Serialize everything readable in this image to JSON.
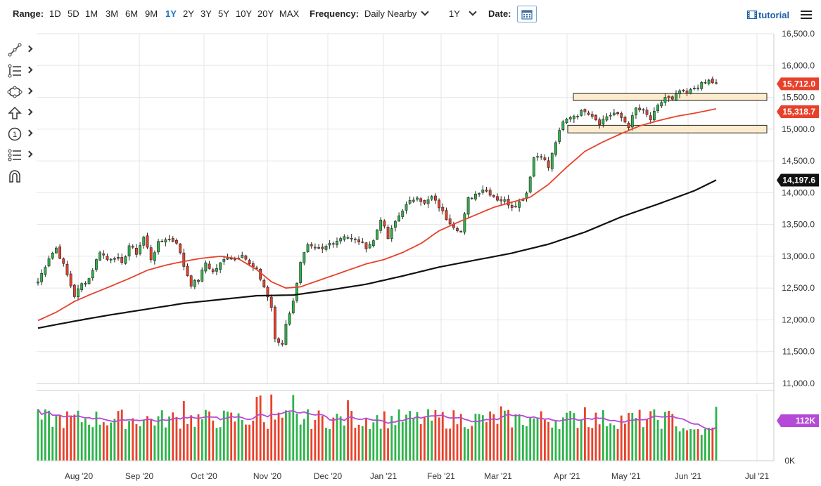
{
  "toolbar": {
    "range_label": "Range:",
    "ranges": [
      "1D",
      "5D",
      "1M",
      "3M",
      "6M",
      "9M",
      "1Y",
      "2Y",
      "3Y",
      "5Y",
      "10Y",
      "20Y",
      "MAX"
    ],
    "active_range": "1Y",
    "frequency_label": "Frequency:",
    "frequency_value": "Daily Nearby",
    "period_value": "1Y",
    "date_label": "Date:",
    "tutorial_label": "tutorial"
  },
  "icons": {
    "tools": [
      "trend-line-icon",
      "fibonacci-icon",
      "shapes-icon",
      "arrow-icon",
      "numbered-marker-icon",
      "measure-icon",
      "magnet-icon"
    ],
    "date": "calendar-icon",
    "tutorial": "film-icon",
    "menu": "hamburger-menu-icon"
  },
  "chart_data": {
    "type": "candlestick",
    "x_labels": [
      "Aug '20",
      "Sep '20",
      "Oct '20",
      "Nov '20",
      "Dec '20",
      "Jan '21",
      "Feb '21",
      "Mar '21",
      "Apr '21",
      "May '21",
      "Jun '21",
      "Jul '21"
    ],
    "y_ticks": [
      "16,500.0",
      "16,000.0",
      "15,500.0",
      "15,000.0",
      "14,500.0",
      "14,000.0",
      "13,500.0",
      "13,000.0",
      "12,500.0",
      "12,000.0",
      "11,500.0",
      "11,000.0"
    ],
    "ylim": [
      11000,
      16500
    ],
    "volume_ticks": [
      "0K"
    ],
    "grid": true,
    "last_price": "15,712.0",
    "ma50_value": "15,318.7",
    "ma200_value": "14,197.6",
    "last_volume": "112K",
    "close_path": [
      [
        0,
        12600
      ],
      [
        3,
        12980
      ],
      [
        5,
        13130
      ],
      [
        7,
        12860
      ],
      [
        10,
        12380
      ],
      [
        12,
        12560
      ],
      [
        14,
        12650
      ],
      [
        17,
        13080
      ],
      [
        19,
        12950
      ],
      [
        21,
        13000
      ],
      [
        23,
        12870
      ],
      [
        25,
        13170
      ],
      [
        27,
        13050
      ],
      [
        29,
        13300
      ],
      [
        31,
        12960
      ],
      [
        33,
        13200
      ],
      [
        35,
        13280
      ],
      [
        38,
        13230
      ],
      [
        40,
        12850
      ],
      [
        42,
        12560
      ],
      [
        44,
        12620
      ],
      [
        46,
        12900
      ],
      [
        48,
        12750
      ],
      [
        50,
        12880
      ],
      [
        52,
        13000
      ],
      [
        54,
        12950
      ],
      [
        56,
        13050
      ],
      [
        58,
        12870
      ],
      [
        60,
        12780
      ],
      [
        62,
        12520
      ],
      [
        64,
        12200
      ],
      [
        65,
        11680
      ],
      [
        67,
        11620
      ],
      [
        68,
        11950
      ],
      [
        70,
        12280
      ],
      [
        72,
        12920
      ],
      [
        74,
        13160
      ],
      [
        76,
        13100
      ],
      [
        78,
        13100
      ],
      [
        80,
        13200
      ],
      [
        82,
        13250
      ],
      [
        84,
        13330
      ],
      [
        86,
        13270
      ],
      [
        88,
        13240
      ],
      [
        90,
        13150
      ],
      [
        92,
        13240
      ],
      [
        94,
        13600
      ],
      [
        96,
        13280
      ],
      [
        98,
        13540
      ],
      [
        100,
        13740
      ],
      [
        102,
        13850
      ],
      [
        104,
        13950
      ],
      [
        106,
        13820
      ],
      [
        108,
        13930
      ],
      [
        110,
        13780
      ],
      [
        112,
        13600
      ],
      [
        114,
        13480
      ],
      [
        116,
        13390
      ],
      [
        118,
        13900
      ],
      [
        120,
        13980
      ],
      [
        122,
        14060
      ],
      [
        124,
        13990
      ],
      [
        126,
        13900
      ],
      [
        128,
        13870
      ],
      [
        130,
        13790
      ],
      [
        132,
        13850
      ],
      [
        134,
        14000
      ],
      [
        136,
        14550
      ],
      [
        138,
        14600
      ],
      [
        140,
        14400
      ],
      [
        142,
        14800
      ],
      [
        144,
        15100
      ],
      [
        146,
        15200
      ],
      [
        148,
        15230
      ],
      [
        150,
        15300
      ],
      [
        152,
        15220
      ],
      [
        154,
        15100
      ],
      [
        156,
        15200
      ],
      [
        158,
        15250
      ],
      [
        160,
        15180
      ],
      [
        162,
        15050
      ],
      [
        164,
        15320
      ],
      [
        166,
        15280
      ],
      [
        168,
        15150
      ],
      [
        170,
        15350
      ],
      [
        172,
        15500
      ],
      [
        174,
        15450
      ],
      [
        176,
        15600
      ],
      [
        178,
        15550
      ],
      [
        180,
        15650
      ],
      [
        182,
        15700
      ],
      [
        184,
        15760
      ],
      [
        186,
        15712
      ]
    ],
    "ma50": [
      [
        0,
        11990
      ],
      [
        5,
        12120
      ],
      [
        10,
        12290
      ],
      [
        14,
        12390
      ],
      [
        20,
        12530
      ],
      [
        25,
        12650
      ],
      [
        30,
        12780
      ],
      [
        35,
        12860
      ],
      [
        40,
        12920
      ],
      [
        45,
        12970
      ],
      [
        50,
        13000
      ],
      [
        55,
        12960
      ],
      [
        60,
        12790
      ],
      [
        64,
        12600
      ],
      [
        68,
        12500
      ],
      [
        72,
        12520
      ],
      [
        76,
        12600
      ],
      [
        80,
        12680
      ],
      [
        85,
        12780
      ],
      [
        90,
        12880
      ],
      [
        95,
        12950
      ],
      [
        100,
        13060
      ],
      [
        105,
        13200
      ],
      [
        110,
        13400
      ],
      [
        115,
        13530
      ],
      [
        120,
        13650
      ],
      [
        125,
        13770
      ],
      [
        130,
        13850
      ],
      [
        135,
        13930
      ],
      [
        140,
        14130
      ],
      [
        145,
        14400
      ],
      [
        150,
        14650
      ],
      [
        155,
        14800
      ],
      [
        160,
        14930
      ],
      [
        165,
        15050
      ],
      [
        170,
        15130
      ],
      [
        175,
        15200
      ],
      [
        180,
        15250
      ],
      [
        186,
        15319
      ]
    ],
    "ma200": [
      [
        0,
        11870
      ],
      [
        10,
        11980
      ],
      [
        20,
        12080
      ],
      [
        30,
        12170
      ],
      [
        40,
        12260
      ],
      [
        50,
        12320
      ],
      [
        60,
        12380
      ],
      [
        70,
        12390
      ],
      [
        80,
        12470
      ],
      [
        90,
        12560
      ],
      [
        100,
        12690
      ],
      [
        110,
        12830
      ],
      [
        120,
        12940
      ],
      [
        130,
        13050
      ],
      [
        140,
        13190
      ],
      [
        150,
        13380
      ],
      [
        160,
        13620
      ],
      [
        170,
        13820
      ],
      [
        180,
        14030
      ],
      [
        186,
        14198
      ]
    ],
    "series": [
      {
        "kind": "support-resistance-zone",
        "range": [
          15450,
          15560
        ]
      },
      {
        "kind": "support-resistance-zone",
        "range": [
          14940,
          15060
        ]
      }
    ],
    "volume_max": 150
  }
}
